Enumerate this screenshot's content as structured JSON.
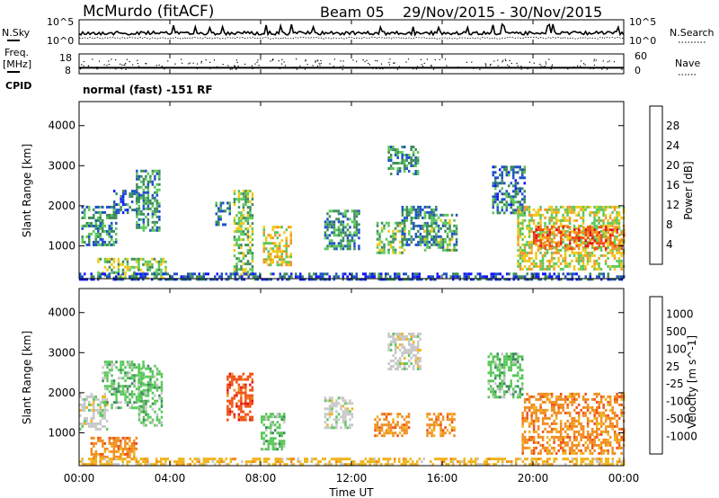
{
  "header": {
    "station": "McMurdo (fitACF)",
    "beam": "Beam 05",
    "date_range": "29/Nov/2015 - 30/Nov/2015"
  },
  "side_labels": {
    "nsky": "N.Sky",
    "freq": "Freq.",
    "freq_unit": "[MHz]",
    "cpid": "CPID",
    "nsearch": "N.Search",
    "nave": "Nave"
  },
  "cpid_text": "normal (fast) -151 RF",
  "time_axis": {
    "label": "Time UT",
    "ticks": [
      "00:00",
      "04:00",
      "08:00",
      "12:00",
      "16:00",
      "20:00",
      "00:00"
    ]
  },
  "chart_data": [
    {
      "type": "line",
      "name": "noise",
      "yaxis_left": {
        "label": "N.Sky",
        "ticks": [
          "10^5",
          "10^0"
        ],
        "scale": "log"
      },
      "yaxis_right": {
        "label": "N.Search",
        "ticks": [
          "10^5",
          "10^0"
        ]
      },
      "x_range_hours": [
        0,
        24
      ]
    },
    {
      "type": "line",
      "name": "freq-nave",
      "yaxis_left": {
        "label": "Freq. [MHz]",
        "ticks": [
          18,
          8
        ],
        "ylim": [
          8,
          18
        ]
      },
      "yaxis_right": {
        "label": "Nave",
        "ticks": [
          60,
          0
        ],
        "ylim": [
          0,
          60
        ]
      },
      "freq_value_mhz": 11,
      "x_range_hours": [
        0,
        24
      ]
    },
    {
      "type": "heatmap",
      "name": "power",
      "ylabel": "Slant Range [km]",
      "yticks": [
        1000,
        2000,
        3000,
        4000
      ],
      "ylim": [
        180,
        4600
      ],
      "xlabel": "Time UT",
      "x_range_hours": [
        0,
        24
      ],
      "colorbar": {
        "label": "Power [dB]",
        "ticks": [
          4,
          8,
          12,
          16,
          20,
          24,
          28
        ],
        "range": [
          0,
          32
        ],
        "colors": [
          "#1414ff",
          "#1e50c8",
          "#3c8c5a",
          "#5ac85a",
          "#f0c814",
          "#f09628",
          "#f05014",
          "#e61414"
        ]
      },
      "echo_regions": [
        {
          "t0": 0.1,
          "t1": 1.6,
          "r0": 1000,
          "r1": 2000,
          "level": 10
        },
        {
          "t0": 1.5,
          "t1": 2.6,
          "r0": 1800,
          "r1": 2400,
          "level": 8
        },
        {
          "t0": 2.5,
          "t1": 3.5,
          "r0": 1400,
          "r1": 2900,
          "level": 10
        },
        {
          "t0": 0.8,
          "t1": 3.8,
          "r0": 180,
          "r1": 700,
          "level": 14
        },
        {
          "t0": 6.0,
          "t1": 6.6,
          "r0": 1500,
          "r1": 2100,
          "level": 9
        },
        {
          "t0": 6.8,
          "t1": 7.6,
          "r0": 300,
          "r1": 2400,
          "level": 14
        },
        {
          "t0": 8.1,
          "t1": 9.3,
          "r0": 500,
          "r1": 1500,
          "level": 18
        },
        {
          "t0": 10.8,
          "t1": 12.3,
          "r0": 900,
          "r1": 1900,
          "level": 10
        },
        {
          "t0": 13.1,
          "t1": 14.3,
          "r0": 800,
          "r1": 1600,
          "level": 14
        },
        {
          "t0": 14.2,
          "t1": 15.7,
          "r0": 1000,
          "r1": 2000,
          "level": 9
        },
        {
          "t0": 15.2,
          "t1": 16.6,
          "r0": 900,
          "r1": 1800,
          "level": 12
        },
        {
          "t0": 13.6,
          "t1": 14.9,
          "r0": 2800,
          "r1": 3500,
          "level": 10
        },
        {
          "t0": 18.2,
          "t1": 19.6,
          "r0": 1800,
          "r1": 3000,
          "level": 8
        },
        {
          "t0": 19.3,
          "t1": 24.0,
          "r0": 400,
          "r1": 2000,
          "level": 17
        },
        {
          "t0": 20.0,
          "t1": 24.0,
          "r0": 900,
          "r1": 1500,
          "level": 25
        },
        {
          "t0": 0.0,
          "t1": 24.0,
          "r0": 180,
          "r1": 330,
          "level": 6
        }
      ]
    },
    {
      "type": "heatmap",
      "name": "velocity",
      "ylabel": "Slant Range [km]",
      "yticks": [
        1000,
        2000,
        3000,
        4000
      ],
      "ylim": [
        180,
        4600
      ],
      "xlabel": "Time UT",
      "x_range_hours": [
        0,
        24
      ],
      "colorbar": {
        "label": "Velocity [m s^-1]",
        "ticks": [
          "1000",
          "500",
          "100",
          "25",
          "-25",
          "-100",
          "-500",
          "-1000"
        ],
        "colors": [
          "#1428c8",
          "#1e50c8",
          "#3c8c5a",
          "#5ac85a",
          "#c8c8c8",
          "#f0b41e",
          "#f08c1e",
          "#f05014",
          "#e61414"
        ]
      },
      "echo_regions": [
        {
          "t0": 0.0,
          "t1": 1.2,
          "r0": 1100,
          "r1": 2000,
          "class": 4
        },
        {
          "t0": 1.0,
          "t1": 2.8,
          "r0": 1600,
          "r1": 2800,
          "class": 3
        },
        {
          "t0": 0.5,
          "t1": 2.5,
          "r0": 400,
          "r1": 900,
          "class": 6
        },
        {
          "t0": 2.6,
          "t1": 3.6,
          "r0": 1200,
          "r1": 2700,
          "class": 3
        },
        {
          "t0": 6.5,
          "t1": 7.6,
          "r0": 1300,
          "r1": 2500,
          "class": 7
        },
        {
          "t0": 8.0,
          "t1": 9.0,
          "r0": 600,
          "r1": 1500,
          "class": 3
        },
        {
          "t0": 10.8,
          "t1": 12.0,
          "r0": 1100,
          "r1": 1900,
          "class": 4
        },
        {
          "t0": 13.0,
          "t1": 14.5,
          "r0": 900,
          "r1": 1500,
          "class": 6
        },
        {
          "t0": 15.3,
          "t1": 16.5,
          "r0": 900,
          "r1": 1500,
          "class": 6
        },
        {
          "t0": 13.6,
          "t1": 15.0,
          "r0": 2600,
          "r1": 3500,
          "class": 4
        },
        {
          "t0": 18.0,
          "t1": 19.5,
          "r0": 1900,
          "r1": 3000,
          "class": 3
        },
        {
          "t0": 19.5,
          "t1": 24.0,
          "r0": 500,
          "r1": 2000,
          "class": 6
        },
        {
          "t0": 0.0,
          "t1": 24.0,
          "r0": 180,
          "r1": 380,
          "class": 5
        }
      ]
    }
  ]
}
